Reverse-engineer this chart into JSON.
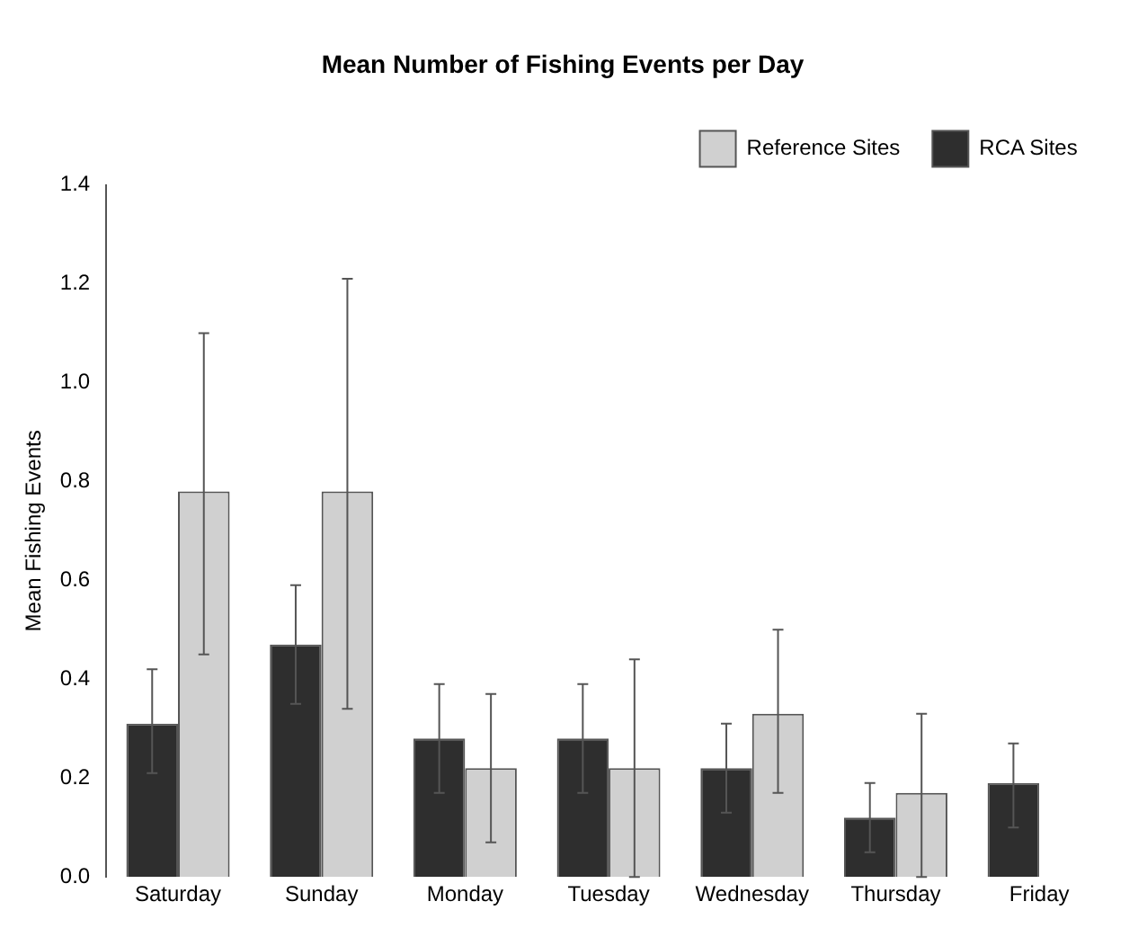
{
  "chart_data": {
    "type": "bar",
    "title": "Mean Number of Fishing Events per Day",
    "ylabel": "Mean Fishing Events",
    "categories": [
      "Saturday",
      "Sunday",
      "Monday",
      "Tuesday",
      "Wednesday",
      "Thursday",
      "Friday"
    ],
    "series": [
      {
        "name": "RCA Sites",
        "color": "#2e2e2e",
        "values": [
          0.31,
          0.47,
          0.28,
          0.28,
          0.22,
          0.12,
          0.19
        ],
        "errors": [
          [
            0.21,
            0.42
          ],
          [
            0.35,
            0.59
          ],
          [
            0.17,
            0.39
          ],
          [
            0.17,
            0.39
          ],
          [
            0.13,
            0.31
          ],
          [
            0.05,
            0.19
          ],
          [
            0.1,
            0.27
          ]
        ]
      },
      {
        "name": "Reference Sites",
        "color": "#d0d0d0",
        "values": [
          0.78,
          0.78,
          0.22,
          0.22,
          0.33,
          0.17,
          null
        ],
        "errors": [
          [
            0.45,
            1.1
          ],
          [
            0.34,
            1.21
          ],
          [
            0.07,
            0.37
          ],
          [
            0.0,
            0.44
          ],
          [
            0.17,
            0.5
          ],
          [
            0.0,
            0.33
          ],
          null
        ]
      }
    ],
    "ylim": [
      0,
      1.4
    ],
    "yticks": [
      {
        "value": 0,
        "label": "0.0"
      },
      0.2,
      0.4,
      0.6,
      0.8,
      {
        "value": 1,
        "label": "1.0"
      },
      1.2,
      1.4
    ],
    "grid": false,
    "legend": "top right"
  }
}
